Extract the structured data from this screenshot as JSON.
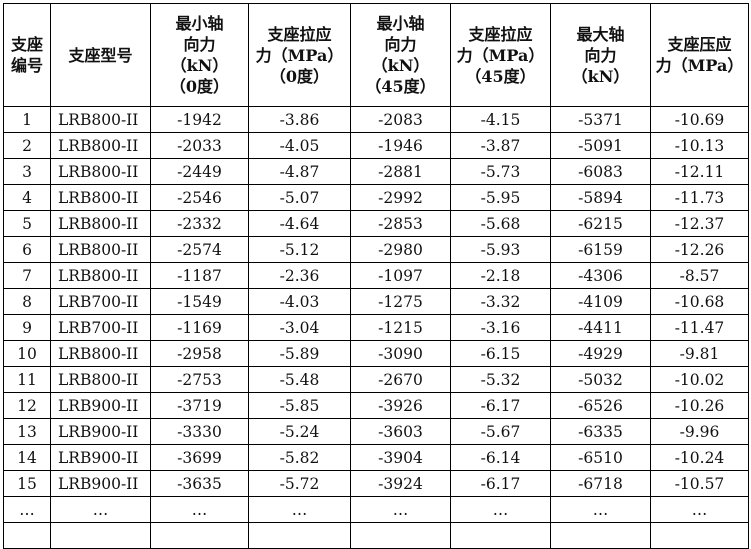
{
  "table": {
    "header": [
      [
        "支座",
        "编号"
      ],
      [
        "支座型号"
      ],
      [
        "最小轴",
        "向力",
        "（kN）",
        "（0度）"
      ],
      [
        "支座拉应",
        "力（MPa）",
        "（0度）"
      ],
      [
        "最小轴",
        "向力",
        "（kN）",
        "（45度）"
      ],
      [
        "支座拉应",
        "力（MPa）",
        "（45度）"
      ],
      [
        "最大轴",
        "向力",
        "（kN）"
      ],
      [
        "支座压应",
        "力（MPa）"
      ]
    ],
    "rows": [
      [
        1,
        "LRB800-II",
        -1942,
        -3.86,
        -2083,
        -4.15,
        -5371,
        -10.69
      ],
      [
        2,
        "LRB800-II",
        -2033,
        -4.05,
        -1946,
        -3.87,
        -5091,
        -10.13
      ],
      [
        3,
        "LRB800-II",
        -2449,
        -4.87,
        -2881,
        -5.73,
        -6083,
        -12.11
      ],
      [
        4,
        "LRB800-II",
        -2546,
        -5.07,
        -2992,
        -5.95,
        -5894,
        -11.73
      ],
      [
        5,
        "LRB800-II",
        -2332,
        -4.64,
        -2853,
        -5.68,
        -6215,
        -12.37
      ],
      [
        6,
        "LRB800-II",
        -2574,
        -5.12,
        -2980,
        -5.93,
        -6159,
        -12.26
      ],
      [
        7,
        "LRB800-II",
        -1187,
        -2.36,
        -1097,
        -2.18,
        -4306,
        -8.57
      ],
      [
        8,
        "LRB700-II",
        -1549,
        -4.03,
        -1275,
        -3.32,
        -4109,
        -10.68
      ],
      [
        9,
        "LRB700-II",
        -1169,
        -3.04,
        -1215,
        -3.16,
        -4411,
        -11.47
      ],
      [
        10,
        "LRB800-II",
        -2958,
        -5.89,
        -3090,
        -6.15,
        -4929,
        -9.81
      ],
      [
        11,
        "LRB800-II",
        -2753,
        -5.48,
        -2670,
        -5.32,
        -5032,
        -10.02
      ],
      [
        12,
        "LRB900-II",
        -3719,
        -5.85,
        -3926,
        -6.17,
        -6526,
        -10.26
      ],
      [
        13,
        "LRB900-II",
        -3330,
        -5.24,
        -3603,
        -5.67,
        -6335,
        -9.96
      ],
      [
        14,
        "LRB900-II",
        -3699,
        -5.82,
        -3904,
        -6.14,
        -6510,
        -10.24
      ],
      [
        15,
        "LRB900-II",
        -3635,
        -5.72,
        -3924,
        -6.17,
        -6718,
        -10.57
      ]
    ],
    "ellipsis_row": [
      "…",
      "…",
      "…",
      "…",
      "…",
      "…",
      "…",
      "…"
    ]
  }
}
